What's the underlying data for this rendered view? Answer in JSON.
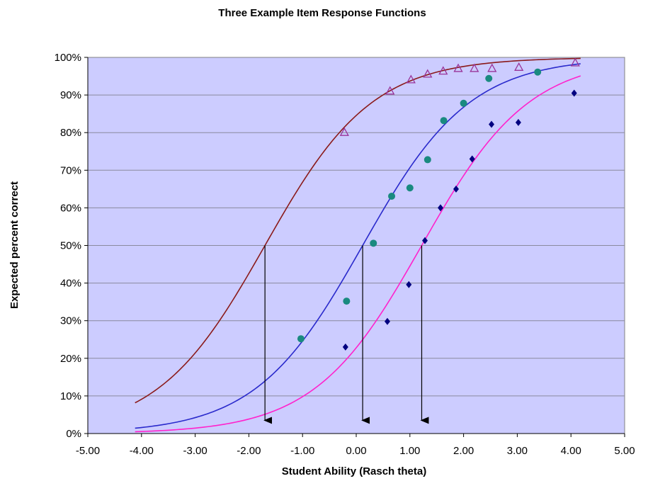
{
  "chart_data": {
    "type": "scatter",
    "title": "Three Example Item Response Functions",
    "xlabel": "Student Ability (Rasch theta)",
    "ylabel": "Expected percent correct",
    "xlim": [
      -5,
      5
    ],
    "ylim": [
      0,
      100
    ],
    "x_ticks": [
      "-5.00",
      "-4.00",
      "-3.00",
      "-2.00",
      "-1.00",
      "0.00",
      "1.00",
      "2.00",
      "3.00",
      "4.00",
      "5.00"
    ],
    "y_ticks": [
      "0%",
      "10%",
      "20%",
      "30%",
      "40%",
      "50%",
      "60%",
      "70%",
      "80%",
      "90%",
      "100%"
    ],
    "grid": "horizontal",
    "plot_background": "#ccccff",
    "curves": [
      {
        "difficulty": -1.7,
        "x_range": [
          -4.12,
          4.18
        ],
        "color": "#8b1a1a"
      },
      {
        "difficulty": 0.12,
        "x_range": [
          -4.12,
          4.18
        ],
        "color": "#2a2acc"
      },
      {
        "difficulty": 1.22,
        "x_range": [
          -4.12,
          4.18
        ],
        "color": "#ff22cc"
      }
    ],
    "series": [
      {
        "marker": "triangle",
        "color": "#993399",
        "x": [
          -0.22,
          0.63,
          1.02,
          1.33,
          1.62,
          1.9,
          2.2,
          2.53,
          3.03,
          4.08
        ],
        "y": [
          80,
          91,
          94,
          95.5,
          96.3,
          97,
          97,
          97,
          97.3,
          98.5
        ]
      },
      {
        "marker": "circle",
        "color": "#1a8a80",
        "x": [
          -1.03,
          -0.18,
          0.32,
          0.66,
          1.0,
          1.33,
          1.63,
          2.0,
          2.47,
          3.38
        ],
        "y": [
          25.2,
          35.2,
          50.6,
          63.1,
          65.3,
          72.8,
          83.2,
          87.8,
          94.4,
          96.1
        ]
      },
      {
        "marker": "diamond",
        "color": "#000080",
        "x": [
          -0.2,
          0.58,
          0.98,
          1.28,
          1.57,
          1.86,
          2.16,
          2.52,
          3.02,
          4.06
        ],
        "y": [
          23,
          29.8,
          39.6,
          51.3,
          60,
          65,
          73,
          82.2,
          82.7,
          90.5
        ]
      }
    ],
    "arrows": [
      {
        "x": -1.7,
        "y_from": 50,
        "y_to": 3.5,
        "color": "#000000"
      },
      {
        "x": 0.12,
        "y_from": 50,
        "y_to": 3.5,
        "color": "#000000"
      },
      {
        "x": 1.22,
        "y_from": 50,
        "y_to": 3.5,
        "color": "#000000"
      }
    ]
  }
}
